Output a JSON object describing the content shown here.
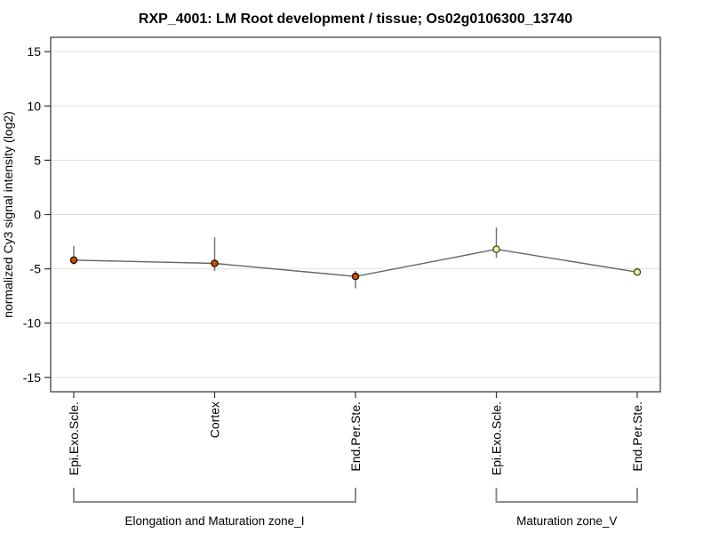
{
  "chart_data": {
    "type": "line",
    "title": "RXP_4001: LM Root development / tissue; Os02g0106300_13740",
    "ylabel": "normalized Cy3 signal intensity (log2)",
    "xlabel": "",
    "ylim": [
      -16.32,
      16.32
    ],
    "yticks": [
      15,
      10,
      5,
      0,
      -5,
      -10,
      -15
    ],
    "grid": "horizontal",
    "legend": "none",
    "categories": [
      "Epi.Exo.Scle.",
      "Cortex",
      "End.Per.Ste.",
      "Epi.Exo.Scle.",
      "End.Per.Ste."
    ],
    "series": [
      {
        "name": "normalized Cy3 signal intensity (log2)",
        "values": [
          -4.2,
          -4.5,
          -5.7,
          -3.2,
          -5.3
        ],
        "error_high": [
          -2.9,
          -2.1,
          -5.2,
          -1.2,
          -5.3
        ],
        "error_low": [
          -4.6,
          -5.2,
          -6.8,
          -4.0,
          -5.3
        ]
      }
    ],
    "groups": [
      {
        "label": "Elongation and Maturation zone_I",
        "start_index": 0,
        "end_index": 2,
        "point_fill": "#cc5200",
        "point_stroke": "#1a0a00"
      },
      {
        "label": "Maturation zone_V",
        "start_index": 3,
        "end_index": 4,
        "point_fill": "#eeeeaa",
        "point_stroke": "#44441a"
      }
    ],
    "colors": {
      "line": "#666666",
      "error_bar": "#6e6e6e",
      "grid": "#e2e2e2",
      "axis": "#333333",
      "bracket": "#8c8c8c",
      "text": "#000000"
    }
  }
}
